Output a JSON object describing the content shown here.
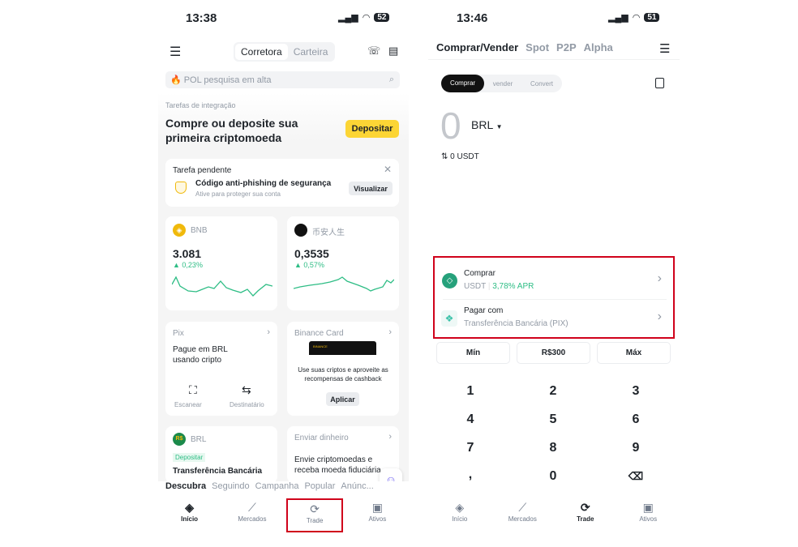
{
  "left": {
    "status": {
      "time": "13:38",
      "battery": "52"
    },
    "header": {
      "tabs": [
        "Corretora",
        "Carteira"
      ]
    },
    "search": {
      "placeholder": "POL pesquisa em alta"
    },
    "onboarding": {
      "label": "Tarefas de integração",
      "headline1": "Compre ou deposite sua",
      "headline2": "primeira criptomoeda",
      "button": "Depositar"
    },
    "pending": {
      "title": "Tarefa pendente",
      "item": "Código anti-phishing de segurança",
      "sub": "Ative para proteger sua conta",
      "button": "Visualizar"
    },
    "tickers": [
      {
        "name": "BNB",
        "price": "3.081",
        "change": "0,23%"
      },
      {
        "name": "币安人生",
        "price": "0,3535",
        "change": "0,57%"
      }
    ],
    "pix": {
      "title": "Pix",
      "text1": "Pague em BRL",
      "text2": "usando cripto",
      "scan": "Escanear",
      "recipient": "Destinatário"
    },
    "card": {
      "title": "Binance Card",
      "brand": "BINANCE",
      "text1": "Use suas criptos e aproveite as",
      "text2": "recompensas de cashback",
      "button": "Aplicar"
    },
    "brl": {
      "title": "BRL",
      "badge": "Depositar",
      "text": "Transferência Bancária"
    },
    "send": {
      "title": "Enviar dinheiro",
      "text1": "Envie criptomoedas e",
      "text2": "receba moeda fiduciária"
    },
    "feed_tabs": [
      "Descubra",
      "Seguindo",
      "Campanha",
      "Popular",
      "Anúnc..."
    ],
    "nav": [
      "Início",
      "Mercados",
      "Trade",
      "Ativos"
    ]
  },
  "right": {
    "status": {
      "time": "13:46",
      "battery": "51"
    },
    "tabs": [
      "Comprar/Vender",
      "Spot",
      "P2P",
      "Alpha"
    ],
    "mode": [
      "Comprar",
      "vender",
      "Convert"
    ],
    "amount": "0",
    "currency": "BRL",
    "converted": "0 USDT",
    "buy": {
      "label": "Comprar",
      "asset": "USDT",
      "apr": "3,78% APR"
    },
    "pay": {
      "label": "Pagar com",
      "method": "Transferência Bancária (PIX)"
    },
    "quick": [
      "Mín",
      "R$300",
      "Máx"
    ],
    "keys": [
      "1",
      "2",
      "3",
      "4",
      "5",
      "6",
      "7",
      "8",
      "9",
      ",",
      "0"
    ],
    "nav": [
      "Início",
      "Mercados",
      "Trade",
      "Ativos"
    ]
  },
  "colors": {
    "accent": "#fcd535",
    "up": "#2ebd85",
    "highlight": "#d0021b"
  }
}
